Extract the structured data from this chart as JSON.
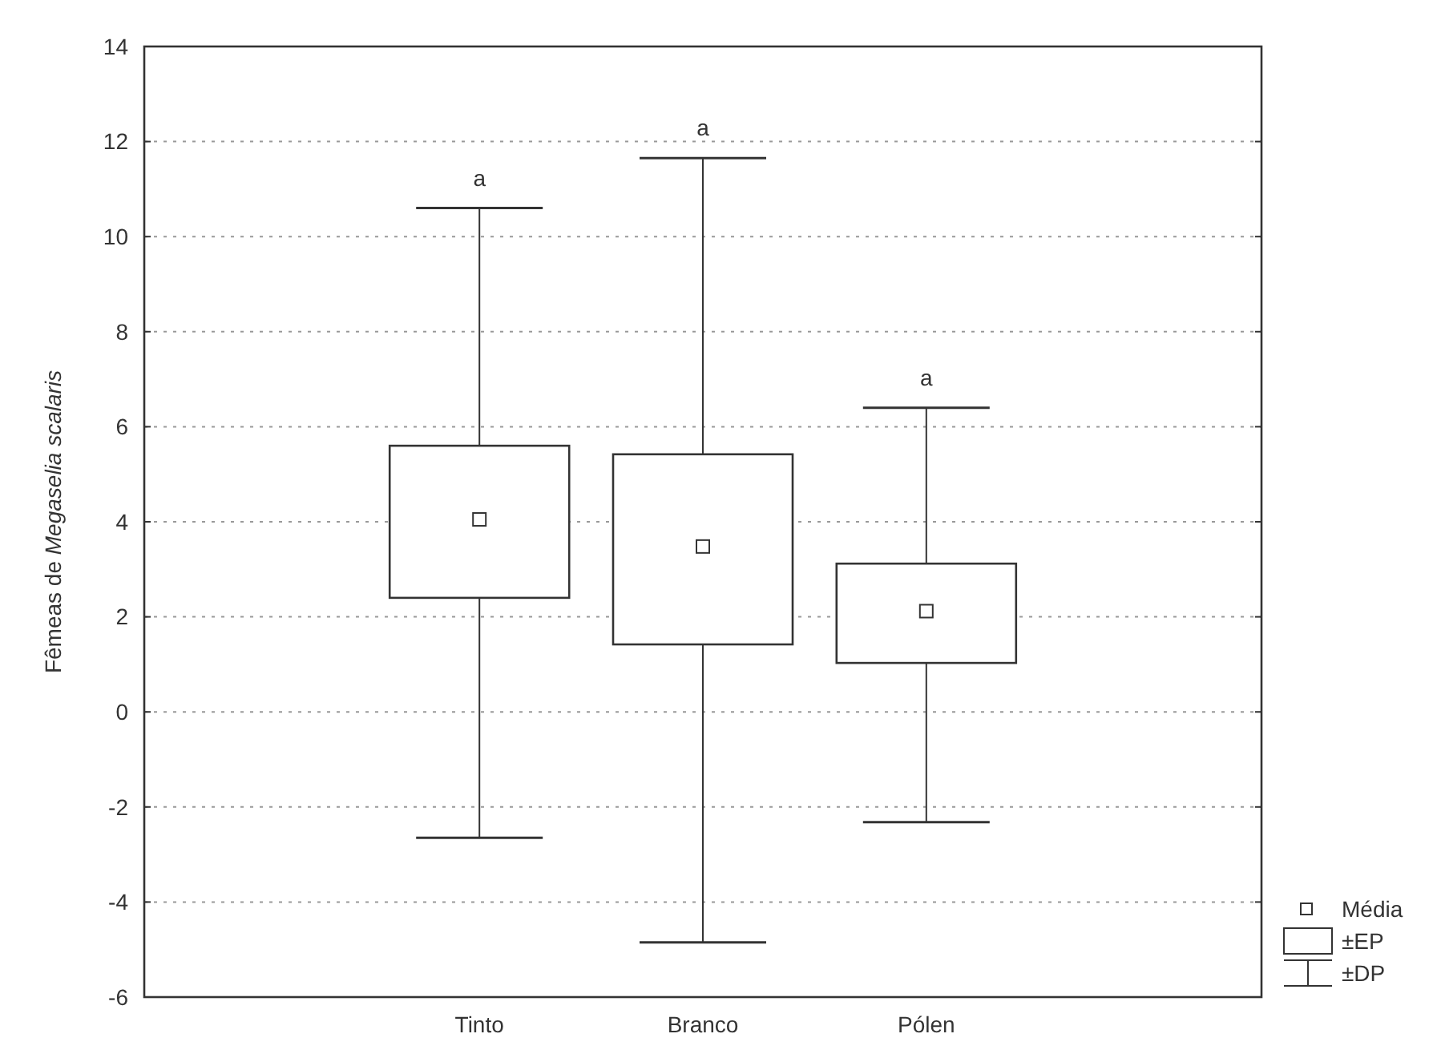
{
  "chart_data": {
    "type": "box",
    "ylabel": "Fêmeas de Megaselia scalaris",
    "categories": [
      null,
      "Tinto",
      "Branco",
      "Pólen",
      null
    ],
    "boxes": [
      null,
      {
        "low": -2.65,
        "q1": 2.4,
        "median": 4.05,
        "q3": 5.6,
        "high": 10.6
      },
      {
        "low": -4.85,
        "q1": 1.42,
        "median": 3.48,
        "q3": 5.42,
        "high": 11.65
      },
      {
        "low": -2.32,
        "q1": 1.03,
        "median": 2.12,
        "q3": 3.12,
        "high": 6.4
      },
      null
    ],
    "ylim": [
      -6,
      14
    ],
    "yticks": [
      -6,
      -4,
      -2,
      0,
      2,
      4,
      6,
      8,
      10,
      12,
      14
    ],
    "grid": "y",
    "marker": "square",
    "annotations": [
      "a",
      "a",
      "a",
      "Média",
      "±EP",
      "±DP"
    ]
  }
}
